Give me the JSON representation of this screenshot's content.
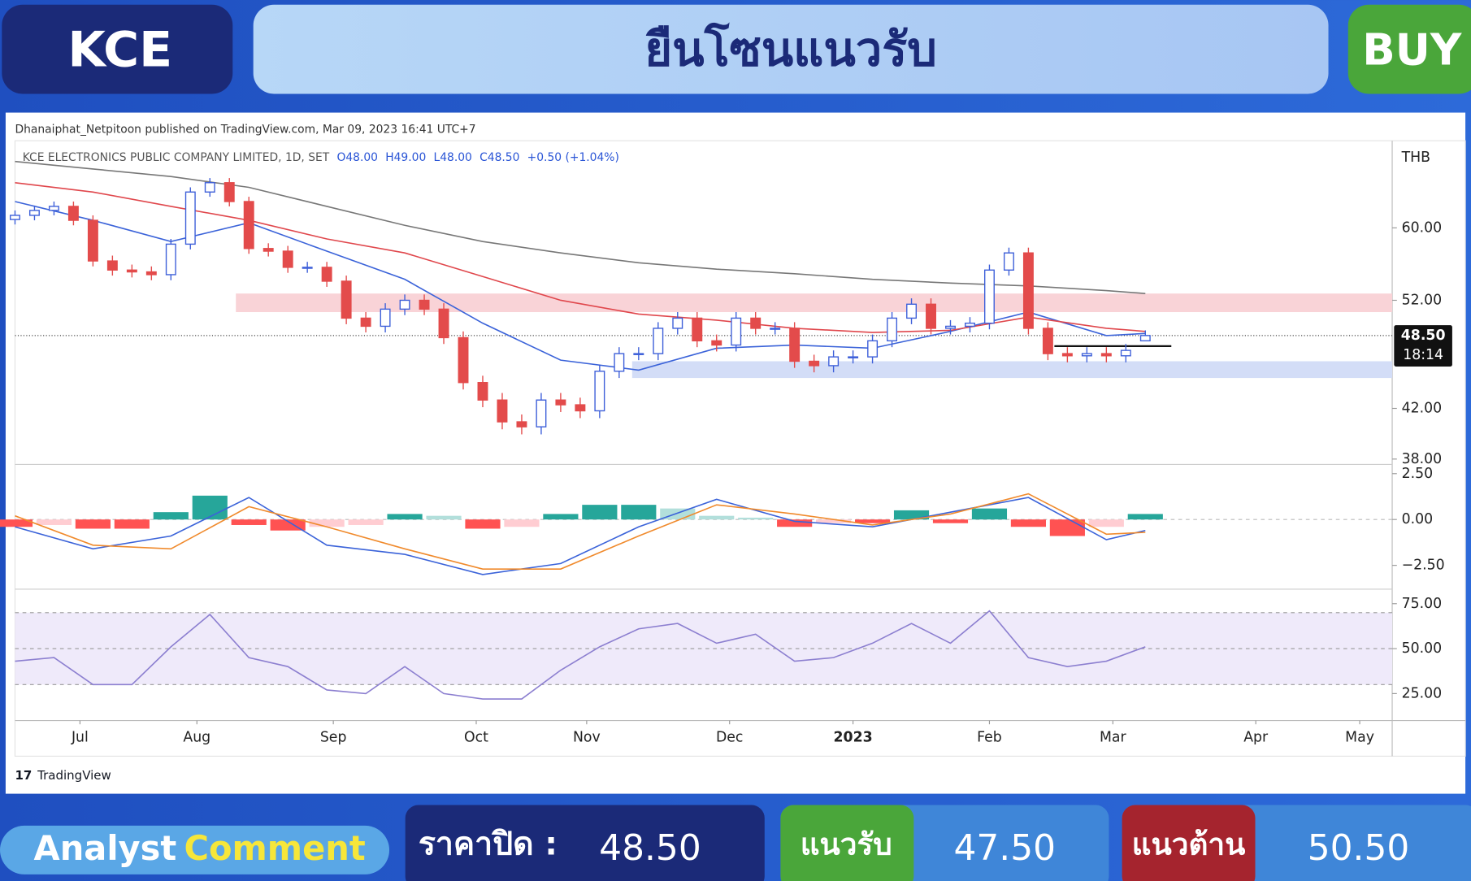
{
  "header": {
    "symbol": "KCE",
    "title": "ยืนโซนแนวรับ",
    "signal": "BUY"
  },
  "publisher": "Dhanaiphat_Netpitoon published on TradingView.com, Mar 09, 2023 16:41 UTC+7",
  "instrument": "KCE ELECTRONICS PUBLIC COMPANY LIMITED, 1D, SET",
  "quote": [
    "O48.00",
    "H49.00",
    "L48.00",
    "C48.50",
    "+0.50 (+1.04%)"
  ],
  "currency": "THB",
  "brand": "TradingView",
  "footer": {
    "label_1": "Analyst",
    "label_2": "Comment",
    "close_label": "ราคาปิด :",
    "close": "48.50",
    "support_label": "แนวรับ",
    "support": "47.50",
    "resistance_label": "แนวต้าน",
    "resistance": "50.50"
  },
  "chart_data": [
    {
      "type": "candlestick",
      "x": [
        0,
        3,
        6,
        9,
        12,
        15,
        18,
        21,
        24,
        27,
        30,
        33,
        36,
        39,
        42,
        45,
        48,
        51,
        54,
        57,
        60,
        63,
        66,
        69,
        72,
        75,
        78,
        81,
        84,
        87,
        90,
        93,
        96,
        99,
        102,
        105,
        108,
        111,
        114,
        117,
        120,
        123,
        126,
        129,
        132,
        135,
        138,
        141,
        144,
        147,
        150,
        153,
        156,
        159,
        162,
        165,
        168,
        171,
        174
      ],
      "open": [
        61.0,
        61.5,
        62.1,
        62.6,
        60.9,
        56.2,
        55.2,
        55.0,
        54.7,
        58.1,
        64.4,
        65.6,
        63.2,
        57.6,
        57.3,
        55.5,
        55.5,
        54.0,
        50.2,
        49.4,
        51.1,
        52.0,
        51.1,
        48.3,
        44.2,
        42.7,
        40.9,
        40.5,
        42.7,
        42.3,
        41.8,
        45.2,
        46.8,
        46.8,
        49.2,
        50.2,
        48.0,
        47.6,
        50.2,
        49.2,
        49.2,
        46.1,
        45.7,
        46.5,
        46.5,
        48.0,
        50.2,
        51.6,
        49.2,
        49.4,
        49.7,
        55.2,
        57.1,
        49.2,
        46.8,
        46.6,
        46.8,
        46.6,
        48.0
      ],
      "high": [
        62.1,
        62.7,
        63.2,
        63.2,
        61.5,
        56.8,
        55.8,
        55.6,
        58.7,
        65.0,
        66.2,
        66.2,
        63.8,
        58.2,
        57.9,
        56.1,
        56.1,
        54.6,
        50.8,
        51.7,
        52.6,
        52.6,
        51.7,
        48.9,
        44.8,
        43.3,
        41.5,
        43.3,
        43.3,
        42.9,
        45.8,
        47.4,
        47.4,
        49.8,
        50.8,
        50.8,
        48.6,
        50.8,
        50.8,
        49.8,
        49.8,
        46.7,
        47.1,
        47.1,
        48.6,
        50.8,
        52.2,
        52.2,
        50.0,
        50.3,
        55.8,
        57.7,
        57.7,
        49.8,
        47.4,
        47.4,
        47.4,
        47.7,
        49.0
      ],
      "low": [
        60.4,
        60.9,
        61.5,
        60.3,
        55.6,
        54.6,
        54.4,
        54.1,
        54.1,
        57.5,
        63.8,
        62.6,
        57.0,
        56.7,
        54.9,
        54.9,
        53.4,
        49.6,
        48.8,
        48.8,
        50.5,
        50.5,
        47.7,
        43.6,
        42.1,
        40.3,
        39.9,
        39.9,
        41.7,
        41.2,
        41.2,
        44.6,
        46.2,
        46.2,
        48.6,
        47.4,
        47.0,
        47.0,
        48.6,
        48.6,
        45.5,
        45.1,
        45.1,
        45.9,
        45.9,
        47.4,
        49.6,
        48.6,
        48.6,
        48.8,
        49.1,
        54.6,
        48.6,
        46.2,
        46.0,
        46.0,
        46.0,
        46.0,
        48.0
      ],
      "close": [
        61.5,
        62.1,
        62.6,
        60.9,
        56.2,
        55.2,
        55.0,
        54.7,
        58.1,
        64.4,
        65.6,
        63.2,
        57.6,
        57.3,
        55.5,
        55.5,
        54.0,
        50.2,
        49.4,
        51.1,
        52.0,
        51.1,
        48.3,
        44.2,
        42.7,
        40.9,
        40.5,
        42.7,
        42.3,
        41.8,
        45.2,
        46.8,
        46.8,
        49.2,
        50.2,
        48.0,
        47.6,
        50.2,
        49.2,
        49.2,
        46.1,
        45.7,
        46.5,
        46.5,
        48.0,
        50.2,
        51.6,
        49.2,
        49.4,
        49.7,
        55.2,
        57.1,
        49.2,
        46.8,
        46.6,
        46.8,
        46.6,
        47.1,
        48.5
      ],
      "up_color": "#3d5fd9",
      "down_color": "#e34b4b",
      "log": true,
      "ylim": [
        37.6,
        71
      ],
      "yticks": [
        {
          "value": 38,
          "label": "38.00"
        },
        {
          "value": 42,
          "label": "42.00"
        },
        {
          "value": 52,
          "label": "52.00"
        },
        {
          "value": 60,
          "label": "60.00"
        }
      ],
      "xlim": [
        0,
        212
      ],
      "series": [
        {
          "color": "#3b63d9",
          "x": [
            0,
            12,
            24,
            36,
            48,
            60,
            72,
            84,
            96,
            108,
            120,
            132,
            144,
            156,
            168,
            174
          ],
          "values": [
            63.2,
            60.9,
            58.4,
            60.6,
            57.3,
            54.2,
            49.7,
            46.2,
            45.3,
            47.3,
            47.6,
            47.3,
            48.9,
            50.8,
            48.5,
            48.7
          ]
        },
        {
          "color": "#e0474c",
          "x": [
            0,
            12,
            24,
            36,
            48,
            60,
            72,
            84,
            96,
            108,
            120,
            132,
            144,
            156,
            168,
            174
          ],
          "values": [
            65.6,
            64.4,
            62.6,
            60.9,
            58.7,
            57.1,
            54.5,
            52.0,
            50.6,
            50.0,
            49.2,
            48.8,
            49.0,
            50.3,
            49.2,
            48.9
          ]
        },
        {
          "color": "#777777",
          "x": [
            0,
            12,
            24,
            36,
            48,
            60,
            72,
            84,
            96,
            108,
            120,
            132,
            144,
            156,
            168,
            174
          ],
          "values": [
            68.4,
            67.4,
            66.4,
            65.0,
            62.6,
            60.3,
            58.4,
            57.1,
            56.0,
            55.3,
            54.8,
            54.2,
            53.8,
            53.5,
            53.0,
            52.7
          ]
        }
      ],
      "zones": [
        {
          "from": 50.8,
          "to": 52.7,
          "x_start": 34,
          "color": "#f9d3d7"
        },
        {
          "from": 44.6,
          "to": 46.1,
          "x_start": 95,
          "color": "#d3ddf7"
        }
      ],
      "level": {
        "value": 47.5,
        "x": [
          160,
          178
        ]
      },
      "last_price": {
        "value": 48.5,
        "label": "48.50"
      },
      "countdown": "18:14"
    },
    {
      "type": "macd",
      "x": [
        0,
        6,
        12,
        18,
        24,
        30,
        36,
        42,
        48,
        54,
        60,
        66,
        72,
        78,
        84,
        90,
        96,
        102,
        108,
        114,
        120,
        126,
        132,
        138,
        144,
        150,
        156,
        162,
        168,
        174
      ],
      "histogram": [
        -0.4,
        -0.3,
        -0.5,
        -0.5,
        0.4,
        1.3,
        -0.3,
        -0.6,
        -0.4,
        -0.3,
        0.3,
        0.2,
        -0.5,
        -0.4,
        0.3,
        0.8,
        0.8,
        0.6,
        0.2,
        0.1,
        -0.4,
        -0.2,
        -0.2,
        0.5,
        -0.2,
        0.6,
        -0.4,
        -0.9,
        -0.4,
        0.3
      ],
      "hist_colors": [
        "#26a69a",
        "#b2dfdb",
        "#ffcdd2",
        "#ff5252"
      ],
      "series": [
        {
          "color": "#3b63d9",
          "x": [
            0,
            12,
            24,
            36,
            48,
            60,
            72,
            84,
            96,
            108,
            120,
            132,
            144,
            156,
            168,
            174
          ],
          "values": [
            -0.4,
            -1.6,
            -0.9,
            1.2,
            -1.4,
            -1.9,
            -3.0,
            -2.4,
            -0.4,
            1.1,
            -0.1,
            -0.4,
            0.4,
            1.2,
            -1.1,
            -0.6
          ]
        },
        {
          "color": "#f08a2c",
          "x": [
            0,
            12,
            24,
            36,
            48,
            60,
            72,
            84,
            96,
            108,
            120,
            132,
            144,
            156,
            168,
            174
          ],
          "values": [
            0.2,
            -1.4,
            -1.6,
            0.7,
            -0.4,
            -1.6,
            -2.7,
            -2.7,
            -0.9,
            0.8,
            0.3,
            -0.3,
            0.3,
            1.4,
            -0.8,
            -0.7
          ]
        }
      ],
      "ylim": [
        -3.8,
        2.9
      ],
      "yticks": [
        {
          "value": 2.5,
          "label": "2.50"
        },
        {
          "value": 0,
          "label": "0.00"
        },
        {
          "value": -2.5,
          "label": "−2.50"
        }
      ],
      "xlim": [
        0,
        212
      ]
    },
    {
      "type": "line",
      "x": [
        0,
        6,
        12,
        18,
        24,
        30,
        36,
        42,
        48,
        54,
        60,
        66,
        72,
        78,
        84,
        90,
        96,
        102,
        108,
        114,
        120,
        126,
        132,
        138,
        144,
        150,
        156,
        162,
        168,
        174
      ],
      "values": [
        43,
        45,
        30,
        30,
        51,
        69,
        45,
        40,
        27,
        25,
        40,
        25,
        22,
        22,
        38,
        51,
        61,
        64,
        53,
        58,
        43,
        45,
        53,
        64,
        53,
        71,
        45,
        40,
        43,
        51
      ],
      "color": "#8c7fd0",
      "ylim": [
        10,
        82
      ],
      "yticks": [
        {
          "value": 25,
          "label": "25.00"
        },
        {
          "value": 50,
          "label": "50.00"
        },
        {
          "value": 75,
          "label": "75.00"
        }
      ],
      "band": [
        30,
        70
      ],
      "band_color": "#efeafa",
      "midline": 50,
      "xlim": [
        0,
        212
      ],
      "xticks": [
        {
          "value": 10,
          "label": "Jul"
        },
        {
          "value": 28,
          "label": "Aug"
        },
        {
          "value": 49,
          "label": "Sep"
        },
        {
          "value": 71,
          "label": "Oct"
        },
        {
          "value": 88,
          "label": "Nov"
        },
        {
          "value": 110,
          "label": "Dec"
        },
        {
          "value": 129,
          "label": "2023"
        },
        {
          "value": 150,
          "label": "Feb"
        },
        {
          "value": 169,
          "label": "Mar"
        },
        {
          "value": 191,
          "label": "Apr"
        },
        {
          "value": 207,
          "label": "May"
        }
      ]
    }
  ]
}
